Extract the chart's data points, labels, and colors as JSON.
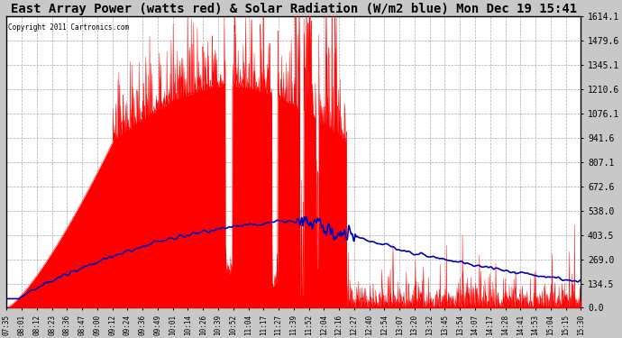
{
  "title": "East Array Power (watts red) & Solar Radiation (W/m2 blue) Mon Dec 19 15:41",
  "copyright": "Copyright 2011 Cartronics.com",
  "title_fontsize": 10,
  "ylabel_right_ticks": [
    0.0,
    134.5,
    269.0,
    403.5,
    538.0,
    672.6,
    807.1,
    941.6,
    1076.1,
    1210.6,
    1345.1,
    1479.6,
    1614.1
  ],
  "ymax": 1614.1,
  "ymin": 0.0,
  "bg_color": "#c8c8c8",
  "plot_bg_color": "#ffffff",
  "grid_color": "#aaaaaa",
  "power_color": "#ff0000",
  "radiation_color": "#0000bb",
  "x_labels": [
    "07:35",
    "08:01",
    "08:12",
    "08:23",
    "08:36",
    "08:47",
    "09:00",
    "09:12",
    "09:24",
    "09:36",
    "09:49",
    "10:01",
    "10:14",
    "10:26",
    "10:39",
    "10:52",
    "11:04",
    "11:17",
    "11:27",
    "11:39",
    "11:52",
    "12:04",
    "12:16",
    "12:27",
    "12:40",
    "12:54",
    "13:07",
    "13:20",
    "13:32",
    "13:45",
    "13:54",
    "14:07",
    "14:17",
    "14:28",
    "14:41",
    "14:53",
    "15:04",
    "15:15",
    "15:30"
  ]
}
